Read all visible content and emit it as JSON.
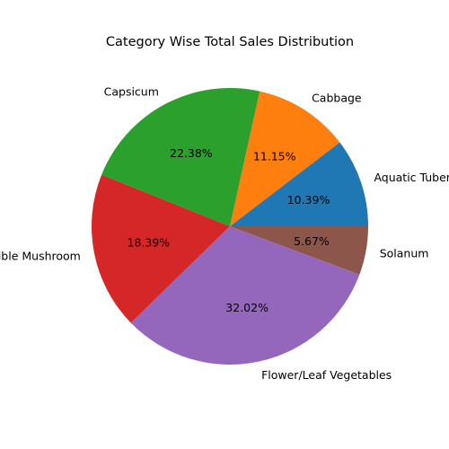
{
  "chart_data": {
    "type": "pie",
    "title": "Category Wise Total Sales Distribution",
    "categories": [
      "Aquatic Tuberous Vegetables",
      "Cabbage",
      "Capsicum",
      "Edible Mushroom",
      "Flower/Leaf Vegetables",
      "Solanum"
    ],
    "values": [
      10.39,
      11.15,
      22.38,
      18.39,
      32.02,
      5.67
    ],
    "value_labels": [
      "10.39%",
      "11.15%",
      "22.38%",
      "18.39%",
      "32.02%",
      "5.67%"
    ],
    "colors": [
      "#1f77b4",
      "#ff7f0e",
      "#2ca02c",
      "#d62728",
      "#9467bd",
      "#8c564b"
    ],
    "start_angle": 0,
    "direction": "counterclockwise",
    "legend": "none"
  }
}
